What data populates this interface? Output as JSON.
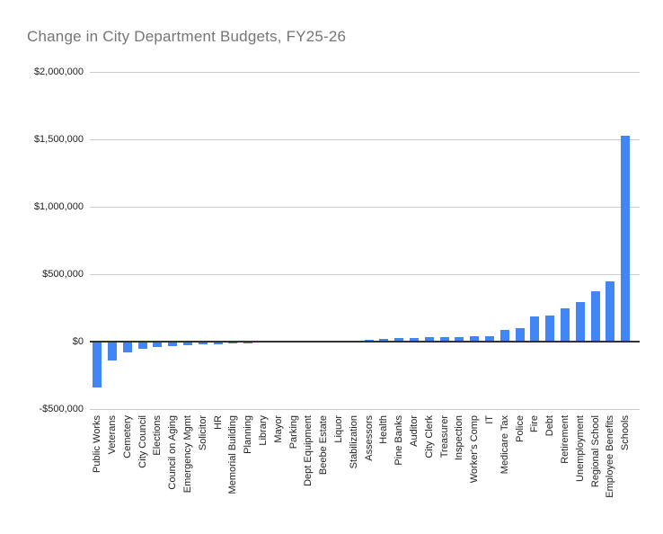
{
  "chart_data": {
    "type": "bar",
    "title": "Change in City Department Budgets, FY25-26",
    "xlabel": "",
    "ylabel": "",
    "legend_position": "none",
    "grid": true,
    "ylim": [
      -500000,
      2000000
    ],
    "y_ticks": [
      {
        "value": -500000,
        "label": "-$500,000"
      },
      {
        "value": 0,
        "label": "$0"
      },
      {
        "value": 500000,
        "label": "$500,000"
      },
      {
        "value": 1000000,
        "label": "$1,000,000"
      },
      {
        "value": 1500000,
        "label": "$1,500,000"
      },
      {
        "value": 2000000,
        "label": "$2,000,000"
      }
    ],
    "categories": [
      "Public Works",
      "Veterans",
      "Cemetery",
      "City Council",
      "Elections",
      "Council on Aging",
      "Emergency Mgmt",
      "Solicitor",
      "HR",
      "Memorial Building",
      "Planning",
      "Library",
      "Mayor",
      "Parking",
      "Dept Equipment",
      "Beebe Estate",
      "Liquor",
      "Stabilization",
      "Assessors",
      "Health",
      "Pine Banks",
      "Auditor",
      "City Clerk",
      "Treasurer",
      "Inspection",
      "Worker's Comp",
      "IT",
      "Medicare Tax",
      "Police",
      "Fire",
      "Debt",
      "Retirement",
      "Unemployment",
      "Regional School",
      "Employee Benefits",
      "Schools"
    ],
    "values": [
      -340000,
      -142000,
      -80000,
      -53000,
      -40000,
      -33000,
      -28000,
      -23000,
      -20000,
      -16000,
      -12000,
      -8000,
      -3000,
      -1500,
      -500,
      0,
      500,
      1500,
      15000,
      22000,
      24000,
      29000,
      31000,
      33000,
      36000,
      40000,
      43000,
      85000,
      100000,
      187000,
      193000,
      247000,
      295000,
      372000,
      445000,
      1525000
    ],
    "colors": {
      "bar": "#4285F4",
      "gridline": "#cccccc",
      "zero_line": "#333333",
      "title_text": "#757575",
      "axis_text": "#222222",
      "background": "#ffffff"
    }
  }
}
